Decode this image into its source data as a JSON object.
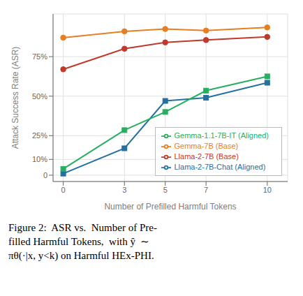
{
  "chart_data": {
    "type": "line",
    "x": [
      0,
      3,
      5,
      7,
      10
    ],
    "series": [
      {
        "name": "Llama-2-7B (Base)",
        "color": "#c0392b",
        "marker": "circle",
        "line_style": "solid",
        "values": [
          0.67,
          0.8,
          0.84,
          0.855,
          0.875
        ]
      },
      {
        "name": "Llama-2-7B-Chat (Aligned)",
        "color": "#2470a0",
        "marker": "square",
        "line_style": "solid",
        "values": [
          0.01,
          0.17,
          0.47,
          0.49,
          0.585
        ]
      },
      {
        "name": "Gemma-7B (Base)",
        "color": "#e67e22",
        "marker": "circle",
        "line_style": "solid",
        "values": [
          0.87,
          0.91,
          0.925,
          0.915,
          0.935
        ]
      },
      {
        "name": "Gemma-1.1-7B-IT (Aligned)",
        "color": "#27ae60",
        "marker": "square",
        "line_style": "solid",
        "values": [
          0.04,
          0.285,
          0.4,
          0.535,
          0.625
        ]
      }
    ],
    "x_label": "Number of Prefilled Harmful Tokens",
    "y_label": "Attack Success Rate (ASR)",
    "xlim": [
      -0.5,
      11.0
    ],
    "ylim": [
      -0.04,
      1.02
    ],
    "xticks": [
      0,
      3,
      5,
      7,
      10
    ],
    "yticks": [
      0,
      {
        "value": 0.1,
        "label": "10%"
      },
      {
        "value": 0.25,
        "label": "25%"
      },
      {
        "value": 0.5,
        "label": "50%"
      },
      {
        "value": 0.75,
        "label": "75%"
      }
    ],
    "grid": true,
    "legend": "lower right",
    "annotations": [
      "Figure 2:  ASR vs.  Number of Pre-",
      "filled Harmful Tokens,  with ŷ  ∼",
      "πθ(·|x, y<k) on Harmful HEx-PHI."
    ]
  }
}
